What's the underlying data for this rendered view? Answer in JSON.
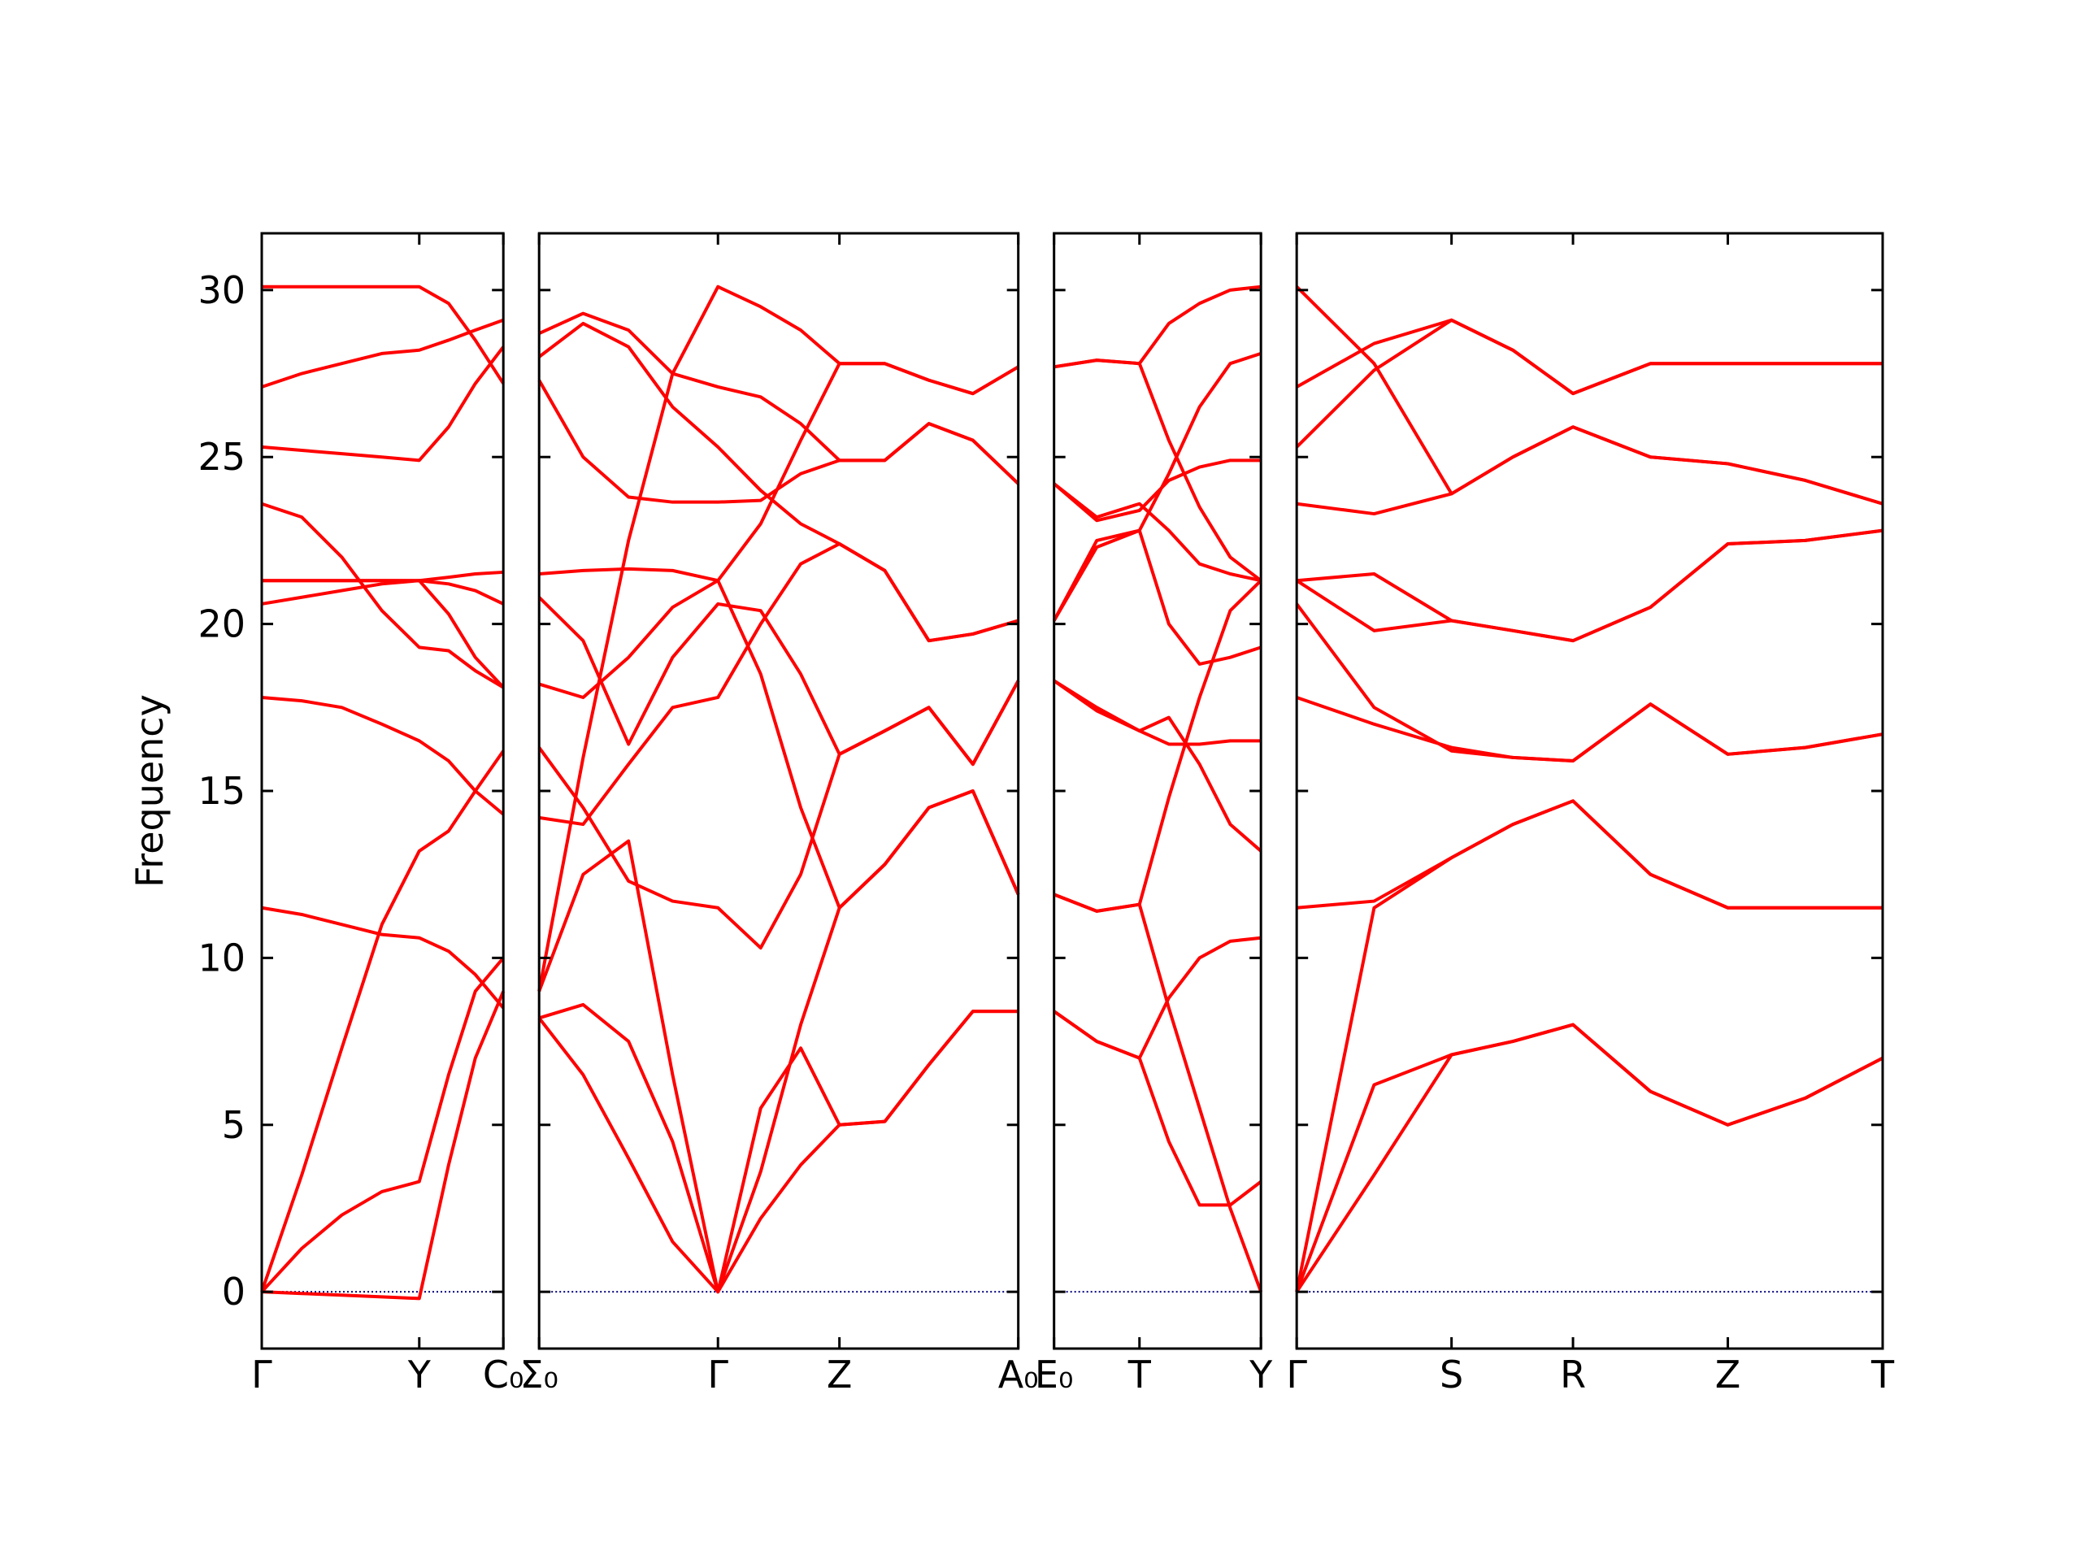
{
  "chart_data": [
    {
      "type": "line",
      "ylabel": "Frequency",
      "color": "#ff0000",
      "hline": 0,
      "hline_color": "#000080",
      "xlim": [
        0,
        1.81
      ],
      "ylim": [
        -1.7,
        31.7
      ],
      "yticks": [
        0,
        5,
        10,
        15,
        20,
        25,
        30
      ],
      "xticks": [
        {
          "value": 0,
          "label": "Γ"
        },
        {
          "value": 1.18,
          "label": "Y"
        },
        {
          "value": 1.81,
          "label": "C₀"
        }
      ],
      "x": [
        0,
        0.3,
        0.6,
        0.9,
        1.18,
        1.4,
        1.6,
        1.81
      ],
      "series": [
        {
          "values": [
            0,
            -0.05,
            -0.1,
            -0.15,
            -0.2,
            3.8,
            7.0,
            9.0
          ]
        },
        {
          "values": [
            0,
            1.3,
            2.3,
            3.0,
            3.3,
            6.5,
            9.0,
            10.0
          ]
        },
        {
          "values": [
            0,
            3.5,
            7.3,
            11.0,
            13.2,
            13.8,
            15.0,
            16.2
          ]
        },
        {
          "values": [
            11.5,
            11.3,
            11.0,
            10.7,
            10.6,
            10.2,
            9.5,
            8.5
          ]
        },
        {
          "values": [
            17.8,
            17.7,
            17.5,
            17.0,
            16.5,
            15.9,
            15.0,
            14.3
          ]
        },
        {
          "values": [
            20.6,
            20.8,
            21.0,
            21.2,
            21.3,
            21.4,
            21.5,
            21.55
          ]
        },
        {
          "values": [
            21.3,
            21.3,
            21.3,
            21.3,
            21.3,
            20.3,
            19.0,
            18.1
          ]
        },
        {
          "values": [
            23.6,
            23.2,
            22.0,
            20.4,
            19.3,
            19.2,
            18.6,
            18.1
          ]
        },
        {
          "values": [
            21.3,
            21.3,
            21.3,
            21.3,
            21.3,
            21.2,
            21.0,
            20.6
          ]
        },
        {
          "values": [
            25.3,
            25.2,
            25.1,
            25.0,
            24.9,
            25.9,
            27.2,
            28.3
          ]
        },
        {
          "values": [
            27.1,
            27.5,
            27.8,
            28.1,
            28.2,
            28.5,
            28.8,
            29.1
          ]
        },
        {
          "values": [
            30.1,
            30.1,
            30.1,
            30.1,
            30.1,
            29.6,
            28.5,
            27.2
          ]
        }
      ]
    },
    {
      "type": "line",
      "color": "#ff0000",
      "hline": 0,
      "hline_color": "#000080",
      "xlim": [
        0,
        3.59
      ],
      "ylim": [
        -1.7,
        31.7
      ],
      "yticks": [
        0,
        5,
        10,
        15,
        20,
        25,
        30
      ],
      "xticks": [
        {
          "value": 0,
          "label": "Σ₀"
        },
        {
          "value": 1.34,
          "label": "Γ"
        },
        {
          "value": 2.25,
          "label": "Z"
        },
        {
          "value": 3.59,
          "label": "A₀"
        }
      ],
      "x": [
        0,
        0.33,
        0.67,
        1.0,
        1.34,
        1.66,
        1.96,
        2.25,
        2.59,
        2.92,
        3.25,
        3.59
      ],
      "series": [
        {
          "values": [
            8.2,
            6.5,
            4.0,
            1.5,
            0,
            2.2,
            3.8,
            5.0,
            5.1,
            6.8,
            8.4,
            8.4
          ]
        },
        {
          "values": [
            8.2,
            8.6,
            7.5,
            4.5,
            0,
            5.5,
            7.3,
            5.0,
            5.1,
            6.8,
            8.4,
            8.4
          ]
        },
        {
          "values": [
            9.0,
            12.5,
            13.5,
            6.5,
            0,
            3.6,
            8.0,
            11.5,
            12.8,
            14.5,
            15.0,
            11.9
          ]
        },
        {
          "values": [
            9.0,
            16.0,
            22.5,
            27.5,
            30.1,
            29.5,
            28.8,
            27.8,
            27.8,
            27.3,
            26.9,
            27.7
          ]
        },
        {
          "values": [
            16.3,
            14.5,
            12.3,
            11.7,
            11.5,
            10.3,
            12.5,
            16.1,
            16.8,
            17.5,
            15.8,
            18.3
          ]
        },
        {
          "values": [
            14.2,
            14.0,
            15.8,
            17.5,
            17.8,
            20.0,
            21.8,
            22.4,
            21.6,
            19.5,
            19.7,
            20.1
          ]
        },
        {
          "values": [
            18.2,
            17.8,
            19.0,
            20.5,
            21.3,
            23.0,
            25.5,
            27.8,
            27.8,
            27.3,
            26.9,
            27.7
          ]
        },
        {
          "values": [
            20.8,
            19.5,
            16.4,
            19.0,
            20.6,
            20.4,
            18.5,
            16.1,
            16.8,
            17.5,
            15.8,
            18.3
          ]
        },
        {
          "values": [
            21.5,
            21.6,
            21.65,
            21.6,
            21.3,
            18.5,
            14.5,
            11.5,
            12.8,
            14.5,
            15.0,
            11.9
          ]
        },
        {
          "values": [
            27.3,
            25.0,
            23.8,
            23.65,
            23.65,
            23.7,
            24.5,
            24.9,
            24.9,
            26.0,
            25.5,
            24.2
          ]
        },
        {
          "values": [
            28.0,
            29.0,
            28.3,
            26.5,
            25.3,
            24.0,
            23.0,
            22.4,
            21.6,
            19.5,
            19.7,
            20.1
          ]
        },
        {
          "values": [
            28.7,
            29.3,
            28.8,
            27.5,
            27.1,
            26.8,
            26.0,
            24.9,
            24.9,
            26.0,
            25.5,
            24.2
          ]
        }
      ]
    },
    {
      "type": "line",
      "color": "#ff0000",
      "hline": 0,
      "hline_color": "#000080",
      "xlim": [
        0,
        1.55
      ],
      "ylim": [
        -1.7,
        31.7
      ],
      "yticks": [
        0,
        5,
        10,
        15,
        20,
        25,
        30
      ],
      "xticks": [
        {
          "value": 0,
          "label": "E₀"
        },
        {
          "value": 0.64,
          "label": "T"
        },
        {
          "value": 1.55,
          "label": "Y"
        }
      ],
      "x": [
        0,
        0.32,
        0.64,
        0.86,
        1.09,
        1.32,
        1.55
      ],
      "series": [
        {
          "values": [
            8.4,
            7.5,
            7.0,
            4.5,
            2.6,
            2.6,
            3.3
          ]
        },
        {
          "values": [
            8.4,
            7.5,
            7.0,
            8.8,
            10.0,
            10.5,
            10.6
          ]
        },
        {
          "values": [
            11.9,
            11.4,
            11.6,
            8.5,
            5.5,
            2.5,
            0
          ]
        },
        {
          "values": [
            11.9,
            11.4,
            11.6,
            14.8,
            17.8,
            20.4,
            21.3
          ]
        },
        {
          "values": [
            18.3,
            17.5,
            16.8,
            17.2,
            15.8,
            14.0,
            13.2
          ]
        },
        {
          "values": [
            18.3,
            17.4,
            16.8,
            16.4,
            16.4,
            16.5,
            16.5
          ]
        },
        {
          "values": [
            20.1,
            22.3,
            22.8,
            20.0,
            18.8,
            19.0,
            19.3
          ]
        },
        {
          "values": [
            24.2,
            23.2,
            23.6,
            22.8,
            21.8,
            21.5,
            21.3
          ]
        },
        {
          "values": [
            24.2,
            23.1,
            23.4,
            24.3,
            24.7,
            24.9,
            24.9
          ]
        },
        {
          "values": [
            27.7,
            27.9,
            27.8,
            25.5,
            23.5,
            22.0,
            21.3
          ]
        },
        {
          "values": [
            27.7,
            27.9,
            27.8,
            29.0,
            29.6,
            30.0,
            30.1
          ]
        },
        {
          "values": [
            20.1,
            22.5,
            22.8,
            24.5,
            26.5,
            27.8,
            28.1
          ]
        }
      ]
    },
    {
      "type": "line",
      "color": "#ff0000",
      "hline": 0,
      "hline_color": "#000080",
      "xlim": [
        0,
        4.39
      ],
      "ylim": [
        -1.7,
        31.7
      ],
      "yticks": [
        0,
        5,
        10,
        15,
        20,
        25,
        30
      ],
      "xticks": [
        {
          "value": 0,
          "label": "Γ"
        },
        {
          "value": 1.16,
          "label": "S"
        },
        {
          "value": 2.07,
          "label": "R"
        },
        {
          "value": 3.23,
          "label": "Z"
        },
        {
          "value": 4.39,
          "label": "T"
        }
      ],
      "x": [
        0,
        0.58,
        1.16,
        1.62,
        2.07,
        2.65,
        3.23,
        3.81,
        4.39
      ],
      "series": [
        {
          "values": [
            0,
            3.5,
            7.1,
            7.5,
            8.0,
            6.0,
            5.0,
            5.8,
            7.0
          ]
        },
        {
          "values": [
            0,
            6.2,
            7.1,
            7.5,
            8.0,
            6.0,
            5.0,
            5.8,
            7.0
          ]
        },
        {
          "values": [
            0,
            11.5,
            13.0,
            14.0,
            14.7,
            12.5,
            11.5,
            11.5,
            11.5
          ]
        },
        {
          "values": [
            11.5,
            11.7,
            13.0,
            14.0,
            14.7,
            12.5,
            11.5,
            11.5,
            11.5
          ]
        },
        {
          "values": [
            17.8,
            17.0,
            16.3,
            16.0,
            15.9,
            17.6,
            16.1,
            16.3,
            16.7
          ]
        },
        {
          "values": [
            20.6,
            17.5,
            16.2,
            16.0,
            15.9,
            17.6,
            16.1,
            16.3,
            16.7
          ]
        },
        {
          "values": [
            21.3,
            19.8,
            20.1,
            19.8,
            19.5,
            20.5,
            22.4,
            22.5,
            22.8
          ]
        },
        {
          "values": [
            21.3,
            21.5,
            20.1,
            19.8,
            19.5,
            20.5,
            22.4,
            22.5,
            22.8
          ]
        },
        {
          "values": [
            23.6,
            23.3,
            23.9,
            25.0,
            25.9,
            25.0,
            24.8,
            24.3,
            23.6
          ]
        },
        {
          "values": [
            25.3,
            27.6,
            29.1,
            28.2,
            26.9,
            27.8,
            27.8,
            27.8,
            27.8
          ]
        },
        {
          "values": [
            27.1,
            28.4,
            29.1,
            28.2,
            26.9,
            27.8,
            27.8,
            27.8,
            27.8
          ]
        },
        {
          "values": [
            30.1,
            27.8,
            23.9,
            25.0,
            25.9,
            25.0,
            24.8,
            24.3,
            23.6
          ]
        }
      ]
    }
  ]
}
